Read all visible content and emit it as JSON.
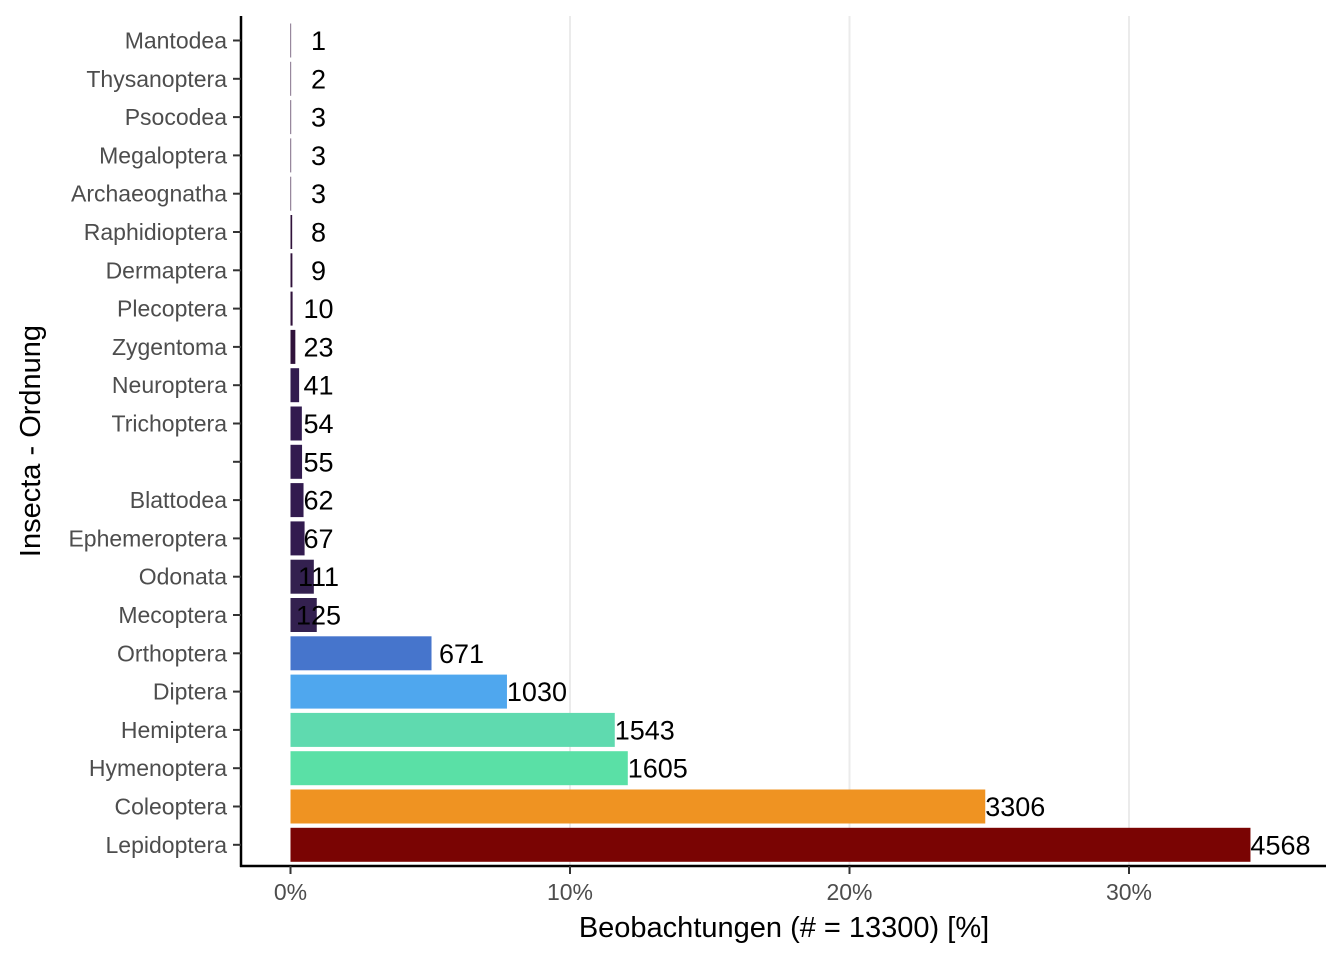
{
  "chart_data": {
    "type": "bar",
    "orientation": "horizontal",
    "xlabel": "Beobachtungen (# = 13300) [%]",
    "ylabel": "Insecta - Ordnung",
    "total": 13300,
    "xlim": [
      0,
      0.36
    ],
    "x_ticks": [
      {
        "value": 0,
        "label": "0%"
      },
      {
        "value": 0.1,
        "label": "10%"
      },
      {
        "value": 0.2,
        "label": "20%"
      },
      {
        "value": 0.3,
        "label": "30%"
      }
    ],
    "grid": "vertical major lines",
    "categories": [
      "Mantodea",
      "Thysanoptera",
      "Psocodea",
      "Megaloptera",
      "Archaeognatha",
      "Raphidioptera",
      "Dermaptera",
      "Plecoptera",
      "Zygentoma",
      "Neuroptera",
      "Trichoptera",
      "",
      "Blattodea",
      "Ephemeroptera",
      "Odonata",
      "Mecoptera",
      "Orthoptera",
      "Diptera",
      "Hemiptera",
      "Hymenoptera",
      "Coleoptera",
      "Lepidoptera"
    ],
    "counts": [
      1,
      2,
      3,
      3,
      3,
      8,
      9,
      10,
      23,
      41,
      54,
      55,
      62,
      67,
      111,
      125,
      671,
      1030,
      1543,
      1605,
      3306,
      4568
    ],
    "labels": [
      "1",
      "2",
      "3",
      "3",
      "3",
      "8",
      "9",
      "10",
      "23",
      "41",
      "54",
      "55",
      "62",
      "67",
      "111",
      "125",
      "671",
      "1030",
      "1543",
      "1605",
      "3306",
      "4568"
    ],
    "colors": [
      "#30123b",
      "#30123b",
      "#30123b",
      "#30123b",
      "#30123b",
      "#30123b",
      "#30123b",
      "#30123b",
      "#30123b",
      "#321b4f",
      "#321b4f",
      "#321b4f",
      "#321b4f",
      "#321b4f",
      "#33204f",
      "#33204f",
      "#4675cc",
      "#4fa7ee",
      "#5fdaaf",
      "#5ae0a6",
      "#ef9322",
      "#7a0403"
    ]
  }
}
